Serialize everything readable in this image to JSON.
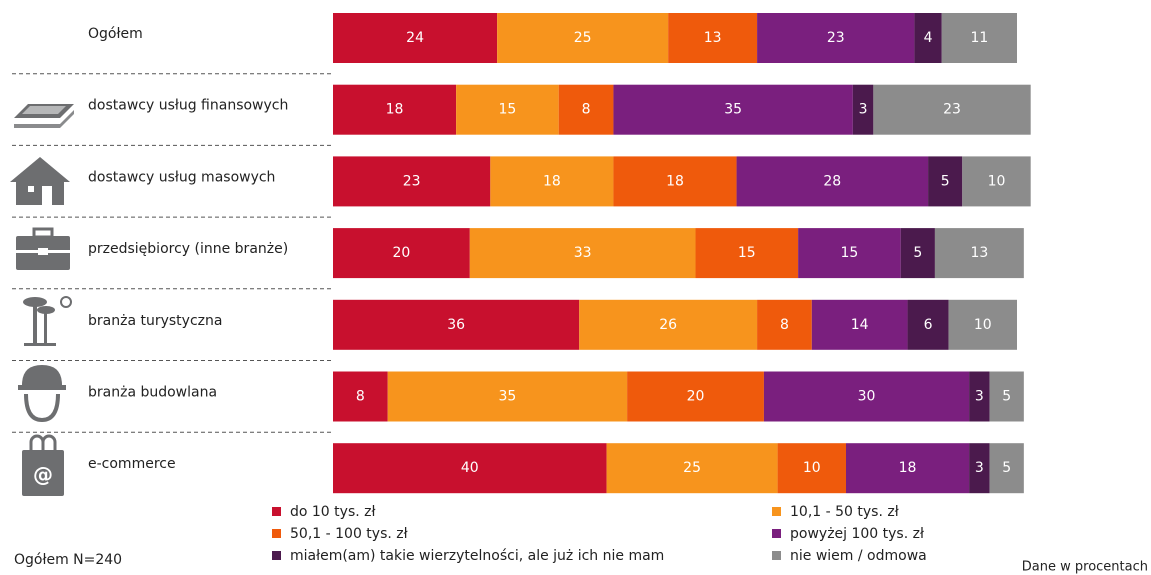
{
  "chart_data": {
    "type": "stacked-bar",
    "categories": [
      "Ogółem",
      "dostawcy usług finansowych",
      "dostawcy usług masowych",
      "przedsiębiorcy (inne branże)",
      "branża turystyczna",
      "branża budowlana",
      "e-commerce"
    ],
    "series": [
      {
        "name": "do 10 tys. zł",
        "color": "#c8102e",
        "values": [
          24,
          18,
          23,
          20,
          36,
          8,
          40
        ]
      },
      {
        "name": "10,1 - 50 tys. zł",
        "color": "#f7941d",
        "values": [
          25,
          15,
          18,
          33,
          26,
          35,
          25
        ]
      },
      {
        "name": "50,1 - 100 tys. zł",
        "color": "#ef5a0c",
        "values": [
          13,
          8,
          18,
          15,
          8,
          20,
          10
        ]
      },
      {
        "name": "powyżej 100 tys. zł",
        "color": "#7a1f7e",
        "values": [
          23,
          35,
          28,
          15,
          14,
          30,
          18
        ]
      },
      {
        "name": "miałem(am) takie wierzytelności, ale już ich nie mam",
        "color": "#4b1a4d",
        "values": [
          4,
          3,
          5,
          5,
          6,
          3,
          3
        ]
      },
      {
        "name": "nie wiem / odmowa",
        "color": "#8c8c8c",
        "values": [
          11,
          23,
          10,
          13,
          10,
          5,
          5
        ]
      }
    ],
    "xlim": [
      0,
      100
    ],
    "note_left": "Ogółem N=240",
    "note_right": "Dane w procentach"
  }
}
